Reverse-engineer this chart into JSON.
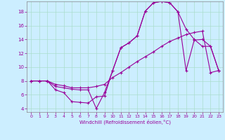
{
  "xlabel": "Windchill (Refroidissement éolien,°C)",
  "bg_color": "#cceeff",
  "line_color": "#990099",
  "grid_color": "#aaddcc",
  "xlim": [
    -0.5,
    23.5
  ],
  "ylim": [
    3.5,
    19.5
  ],
  "xticks": [
    0,
    1,
    2,
    3,
    4,
    5,
    6,
    7,
    8,
    9,
    10,
    11,
    12,
    13,
    14,
    15,
    16,
    17,
    18,
    19,
    20,
    21,
    22,
    23
  ],
  "yticks": [
    4,
    6,
    8,
    10,
    12,
    14,
    16,
    18
  ],
  "line1_x": [
    0,
    1,
    2,
    3,
    4,
    5,
    6,
    7,
    8,
    9,
    10,
    11,
    12,
    13,
    14,
    15,
    16,
    17,
    18,
    19,
    20,
    21,
    22,
    23
  ],
  "line1_y": [
    8.0,
    8.0,
    8.0,
    6.7,
    6.3,
    5.0,
    4.9,
    4.8,
    5.7,
    5.8,
    9.5,
    12.8,
    13.5,
    14.5,
    18.1,
    19.3,
    19.5,
    19.3,
    18.0,
    9.5,
    13.9,
    14.0,
    13.0,
    9.5
  ],
  "line2_x": [
    0,
    1,
    2,
    3,
    4,
    5,
    6,
    7,
    8,
    9,
    10,
    11,
    12,
    13,
    14,
    15,
    16,
    17,
    18,
    19,
    20,
    21,
    22,
    23
  ],
  "line2_y": [
    8.0,
    8.0,
    8.0,
    7.5,
    7.3,
    7.0,
    7.0,
    7.0,
    7.2,
    7.5,
    8.5,
    9.2,
    10.0,
    10.8,
    11.5,
    12.2,
    13.0,
    13.7,
    14.2,
    14.7,
    15.0,
    15.2,
    9.2,
    9.5
  ],
  "line3_x": [
    0,
    1,
    2,
    3,
    4,
    5,
    6,
    7,
    8,
    9,
    10,
    11,
    12,
    13,
    14,
    15,
    16,
    17,
    18,
    19,
    20,
    21,
    22,
    23
  ],
  "line3_y": [
    8.0,
    8.0,
    8.0,
    7.2,
    7.0,
    6.8,
    6.7,
    6.7,
    4.0,
    6.3,
    9.5,
    12.8,
    13.5,
    14.5,
    18.1,
    19.3,
    19.5,
    19.3,
    18.0,
    15.5,
    14.0,
    13.0,
    13.0,
    9.5
  ]
}
